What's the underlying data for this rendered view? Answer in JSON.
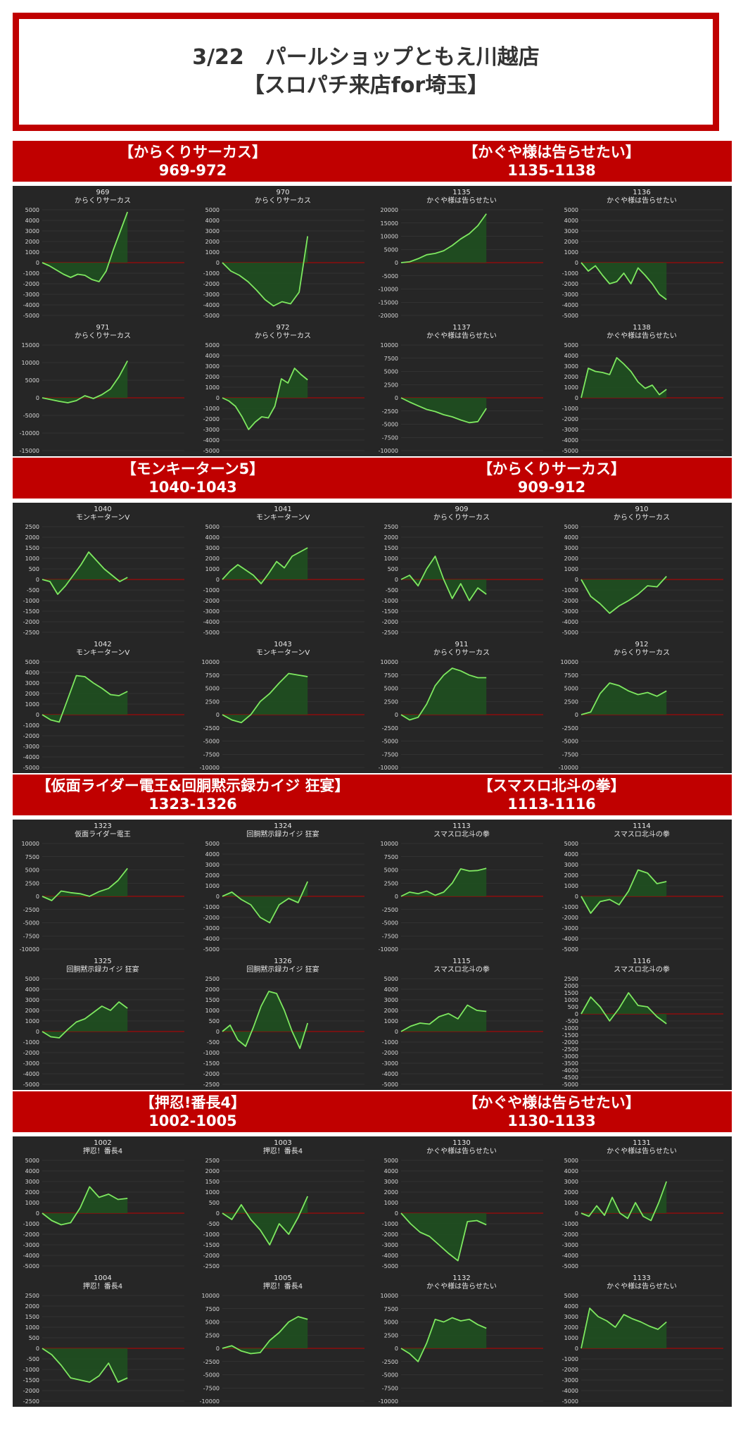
{
  "page": {
    "title_line1": "3/22　パールショップともえ川越店",
    "title_line2": "【スロパチ来店for埼玉】"
  },
  "colors": {
    "accent": "#c00000",
    "panel_bg": "#262626",
    "line": "#7ee860",
    "fill": "#1f5220",
    "zero_line": "#c00000"
  },
  "sections": [
    {
      "name": "【からくりサーカス】",
      "range": "969-972",
      "charts": [
        {
          "num": "969",
          "name": "からくりサーカス",
          "ymin": -5000,
          "ymax": 5000,
          "step": 1000,
          "values": [
            0,
            -300,
            -700,
            -1100,
            -1400,
            -1100,
            -1200,
            -1600,
            -1800,
            -800,
            1200,
            3000,
            4800
          ]
        },
        {
          "num": "970",
          "name": "からくりサーカス",
          "ymin": -5000,
          "ymax": 5000,
          "step": 1000,
          "values": [
            0,
            -800,
            -1200,
            -1800,
            -2600,
            -3500,
            -4100,
            -3700,
            -3900,
            -2800,
            2500
          ]
        },
        {
          "num": "971",
          "name": "からくりサーカス",
          "ymin": -15000,
          "ymax": 15000,
          "step": 5000,
          "values": [
            0,
            -500,
            -1000,
            -1400,
            -800,
            600,
            -200,
            900,
            2500,
            6000,
            10500
          ]
        },
        {
          "num": "972",
          "name": "からくりサーカス",
          "ymin": -5000,
          "ymax": 5000,
          "step": 1000,
          "values": [
            0,
            -300,
            -800,
            -1800,
            -3000,
            -2300,
            -1800,
            -1900,
            -800,
            1800,
            1400,
            2800,
            2200,
            1700
          ]
        }
      ]
    },
    {
      "name": "【かぐや様は告らせたい】",
      "range": "1135-1138",
      "charts": [
        {
          "num": "1135",
          "name": "かぐや様は告らせたい",
          "ymin": -20000,
          "ymax": 20000,
          "step": 5000,
          "values": [
            0,
            300,
            1500,
            3000,
            3500,
            4500,
            6500,
            9000,
            11000,
            14000,
            18500
          ]
        },
        {
          "num": "1136",
          "name": "かぐや様は告らせたい",
          "ymin": -5000,
          "ymax": 5000,
          "step": 1000,
          "values": [
            0,
            -800,
            -300,
            -1200,
            -2000,
            -1800,
            -1000,
            -2000,
            -500,
            -1200,
            -2000,
            -3000,
            -3500
          ]
        },
        {
          "num": "1137",
          "name": "かぐや様は告らせたい",
          "ymin": -10000,
          "ymax": 10000,
          "step": 2500,
          "values": [
            0,
            -800,
            -1500,
            -2200,
            -2600,
            -3200,
            -3600,
            -4200,
            -4700,
            -4500,
            -2000
          ]
        },
        {
          "num": "1138",
          "name": "かぐや様は告らせたい",
          "ymin": -5000,
          "ymax": 5000,
          "step": 1000,
          "values": [
            0,
            2800,
            2500,
            2400,
            2200,
            3800,
            3200,
            2500,
            1500,
            900,
            1200,
            300,
            800
          ]
        }
      ]
    },
    {
      "name": "【モンキーターン5】",
      "range": "1040-1043",
      "charts": [
        {
          "num": "1040",
          "name": "モンキーターンV",
          "ymin": -2500,
          "ymax": 2500,
          "step": 500,
          "values": [
            0,
            -100,
            -700,
            -300,
            200,
            700,
            1300,
            900,
            500,
            200,
            -100,
            100
          ]
        },
        {
          "num": "1041",
          "name": "モンキーターンV",
          "ymin": -5000,
          "ymax": 5000,
          "step": 1000,
          "values": [
            0,
            800,
            1400,
            900,
            400,
            -400,
            600,
            1700,
            1100,
            2200,
            2600,
            3000
          ]
        },
        {
          "num": "1042",
          "name": "モンキーターンV",
          "ymin": -5000,
          "ymax": 5000,
          "step": 1000,
          "values": [
            0,
            -500,
            -700,
            1500,
            3700,
            3600,
            3000,
            2500,
            1900,
            1800,
            2200
          ]
        },
        {
          "num": "1043",
          "name": "モンキーターンV",
          "ymin": -10000,
          "ymax": 10000,
          "step": 2500,
          "values": [
            0,
            -1000,
            -1500,
            0,
            2500,
            4000,
            6000,
            7800,
            7500,
            7200
          ]
        }
      ]
    },
    {
      "name": "【からくりサーカス】",
      "range": "909-912",
      "charts": [
        {
          "num": "909",
          "name": "からくりサーカス",
          "ymin": -2500,
          "ymax": 2500,
          "step": 500,
          "values": [
            0,
            200,
            -300,
            500,
            1100,
            0,
            -900,
            -200,
            -1000,
            -400,
            -700
          ]
        },
        {
          "num": "910",
          "name": "からくりサーカス",
          "ymin": -5000,
          "ymax": 5000,
          "step": 1000,
          "values": [
            0,
            -1600,
            -2300,
            -3200,
            -2500,
            -2000,
            -1400,
            -600,
            -700,
            300
          ]
        },
        {
          "num": "911",
          "name": "からくりサーカス",
          "ymin": -10000,
          "ymax": 10000,
          "step": 2500,
          "values": [
            0,
            -1000,
            -500,
            2000,
            5500,
            7500,
            8800,
            8300,
            7500,
            7000,
            7000
          ]
        },
        {
          "num": "912",
          "name": "からくりサーカス",
          "ymin": -10000,
          "ymax": 10000,
          "step": 2500,
          "values": [
            0,
            500,
            4000,
            6000,
            5500,
            4500,
            3800,
            4200,
            3500,
            4500
          ]
        }
      ]
    },
    {
      "name": "【仮面ライダー電王&回胴黙示録カイジ 狂宴】",
      "range": "1323-1326",
      "charts": [
        {
          "num": "1323",
          "name": "仮面ライダー電王",
          "ymin": -10000,
          "ymax": 10000,
          "step": 2500,
          "values": [
            0,
            -800,
            1000,
            700,
            500,
            0,
            900,
            1500,
            3000,
            5300
          ]
        },
        {
          "num": "1324",
          "name": "回胴黙示録カイジ 狂宴",
          "ymin": -5000,
          "ymax": 5000,
          "step": 1000,
          "values": [
            0,
            400,
            -300,
            -800,
            -2000,
            -2500,
            -800,
            -200,
            -600,
            1400
          ]
        },
        {
          "num": "1325",
          "name": "回胴黙示録カイジ 狂宴",
          "ymin": -5000,
          "ymax": 5000,
          "step": 1000,
          "values": [
            0,
            -500,
            -600,
            200,
            900,
            1200,
            1800,
            2400,
            2000,
            2800,
            2200
          ]
        },
        {
          "num": "1326",
          "name": "回胴黙示録カイジ 狂宴",
          "ymin": -2500,
          "ymax": 2500,
          "step": 500,
          "values": [
            0,
            300,
            -400,
            -700,
            200,
            1200,
            1900,
            1800,
            1000,
            0,
            -800,
            400
          ]
        }
      ]
    },
    {
      "name": "【スマスロ北斗の拳】",
      "range": "1113-1116",
      "charts": [
        {
          "num": "1113",
          "name": "スマスロ北斗の拳",
          "ymin": -10000,
          "ymax": 10000,
          "step": 2500,
          "values": [
            0,
            800,
            500,
            1000,
            200,
            800,
            2500,
            5200,
            4800,
            4900,
            5300
          ]
        },
        {
          "num": "1114",
          "name": "スマスロ北斗の拳",
          "ymin": -5000,
          "ymax": 5000,
          "step": 1000,
          "values": [
            0,
            -1600,
            -500,
            -300,
            -800,
            500,
            2500,
            2200,
            1200,
            1400
          ]
        },
        {
          "num": "1115",
          "name": "スマスロ北斗の拳",
          "ymin": -5000,
          "ymax": 5000,
          "step": 1000,
          "values": [
            0,
            500,
            800,
            700,
            1400,
            1700,
            1200,
            2500,
            2000,
            1900
          ]
        },
        {
          "num": "1116",
          "name": "スマスロ北斗の拳",
          "ymin": -5000,
          "ymax": 2500,
          "step": 500,
          "values": [
            0,
            1200,
            500,
            -500,
            400,
            1500,
            600,
            500,
            -200,
            -700
          ]
        }
      ]
    },
    {
      "name": "【押忍!番長4】",
      "range": "1002-1005",
      "charts": [
        {
          "num": "1002",
          "name": "押忍！番長4",
          "ymin": -5000,
          "ymax": 5000,
          "step": 1000,
          "values": [
            0,
            -700,
            -1100,
            -900,
            500,
            2500,
            1500,
            1800,
            1300,
            1400
          ]
        },
        {
          "num": "1003",
          "name": "押忍！番長4",
          "ymin": -2500,
          "ymax": 2500,
          "step": 500,
          "values": [
            0,
            -300,
            400,
            -300,
            -800,
            -1500,
            -500,
            -1000,
            -200,
            800
          ]
        },
        {
          "num": "1004",
          "name": "押忍！番長4",
          "ymin": -2500,
          "ymax": 2500,
          "step": 500,
          "values": [
            0,
            -300,
            -800,
            -1400,
            -1500,
            -1600,
            -1300,
            -700,
            -1600,
            -1400
          ]
        },
        {
          "num": "1005",
          "name": "押忍！番長4",
          "ymin": -10000,
          "ymax": 10000,
          "step": 2500,
          "values": [
            0,
            500,
            -500,
            -1000,
            -800,
            1500,
            3000,
            5000,
            6000,
            5500
          ]
        }
      ]
    },
    {
      "name": "【かぐや様は告らせたい】",
      "range": "1130-1133",
      "charts": [
        {
          "num": "1130",
          "name": "かぐや様は告らせたい",
          "ymin": -5000,
          "ymax": 5000,
          "step": 1000,
          "values": [
            0,
            -1000,
            -1800,
            -2200,
            -3000,
            -3800,
            -4500,
            -800,
            -700,
            -1100
          ]
        },
        {
          "num": "1131",
          "name": "かぐや様は告らせたい",
          "ymin": -5000,
          "ymax": 5000,
          "step": 1000,
          "values": [
            0,
            -300,
            700,
            -200,
            1500,
            0,
            -500,
            1000,
            -300,
            -700,
            1000,
            3000
          ]
        },
        {
          "num": "1132",
          "name": "かぐや様は告らせたい",
          "ymin": -10000,
          "ymax": 10000,
          "step": 2500,
          "values": [
            0,
            -1000,
            -2500,
            1000,
            5500,
            5000,
            5800,
            5200,
            5500,
            4500,
            3800
          ]
        },
        {
          "num": "1133",
          "name": "かぐや様は告らせたい",
          "ymin": -5000,
          "ymax": 5000,
          "step": 1000,
          "values": [
            0,
            3800,
            3000,
            2600,
            2000,
            3200,
            2800,
            2500,
            2100,
            1800,
            2500
          ]
        }
      ]
    }
  ],
  "chart_data": []
}
